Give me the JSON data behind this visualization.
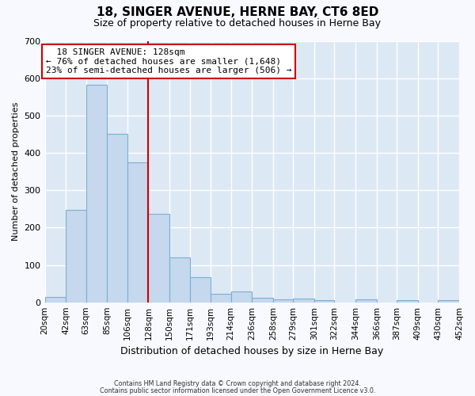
{
  "title": "18, SINGER AVENUE, HERNE BAY, CT6 8ED",
  "subtitle": "Size of property relative to detached houses in Herne Bay",
  "xlabel": "Distribution of detached houses by size in Herne Bay",
  "ylabel": "Number of detached properties",
  "bin_labels": [
    "20sqm",
    "42sqm",
    "63sqm",
    "85sqm",
    "106sqm",
    "128sqm",
    "150sqm",
    "171sqm",
    "193sqm",
    "214sqm",
    "236sqm",
    "258sqm",
    "279sqm",
    "301sqm",
    "322sqm",
    "344sqm",
    "366sqm",
    "387sqm",
    "409sqm",
    "430sqm",
    "452sqm"
  ],
  "bin_edges": [
    20,
    42,
    63,
    85,
    106,
    128,
    150,
    171,
    193,
    214,
    236,
    258,
    279,
    301,
    322,
    344,
    366,
    387,
    409,
    430,
    452
  ],
  "bar_heights": [
    15,
    248,
    583,
    450,
    375,
    237,
    120,
    68,
    22,
    30,
    12,
    7,
    10,
    5,
    0,
    8,
    0,
    5,
    0,
    5
  ],
  "bar_color": "#c5d8ed",
  "bar_edge_color": "#7aafd4",
  "vline_x": 128,
  "vline_color": "#cc0000",
  "ylim": [
    0,
    700
  ],
  "yticks": [
    0,
    100,
    200,
    300,
    400,
    500,
    600,
    700
  ],
  "annotation_title": "18 SINGER AVENUE: 128sqm",
  "annotation_line1": "← 76% of detached houses are smaller (1,648)",
  "annotation_line2": "23% of semi-detached houses are larger (506) →",
  "annotation_box_facecolor": "#ffffff",
  "annotation_box_edgecolor": "#cc0000",
  "footer1": "Contains HM Land Registry data © Crown copyright and database right 2024.",
  "footer2": "Contains public sector information licensed under the Open Government Licence v3.0.",
  "fig_facecolor": "#f8f9ff",
  "axes_facecolor": "#dde8f5",
  "grid_color": "#ffffff",
  "title_fontsize": 11,
  "subtitle_fontsize": 9,
  "ylabel_fontsize": 8,
  "xlabel_fontsize": 9
}
